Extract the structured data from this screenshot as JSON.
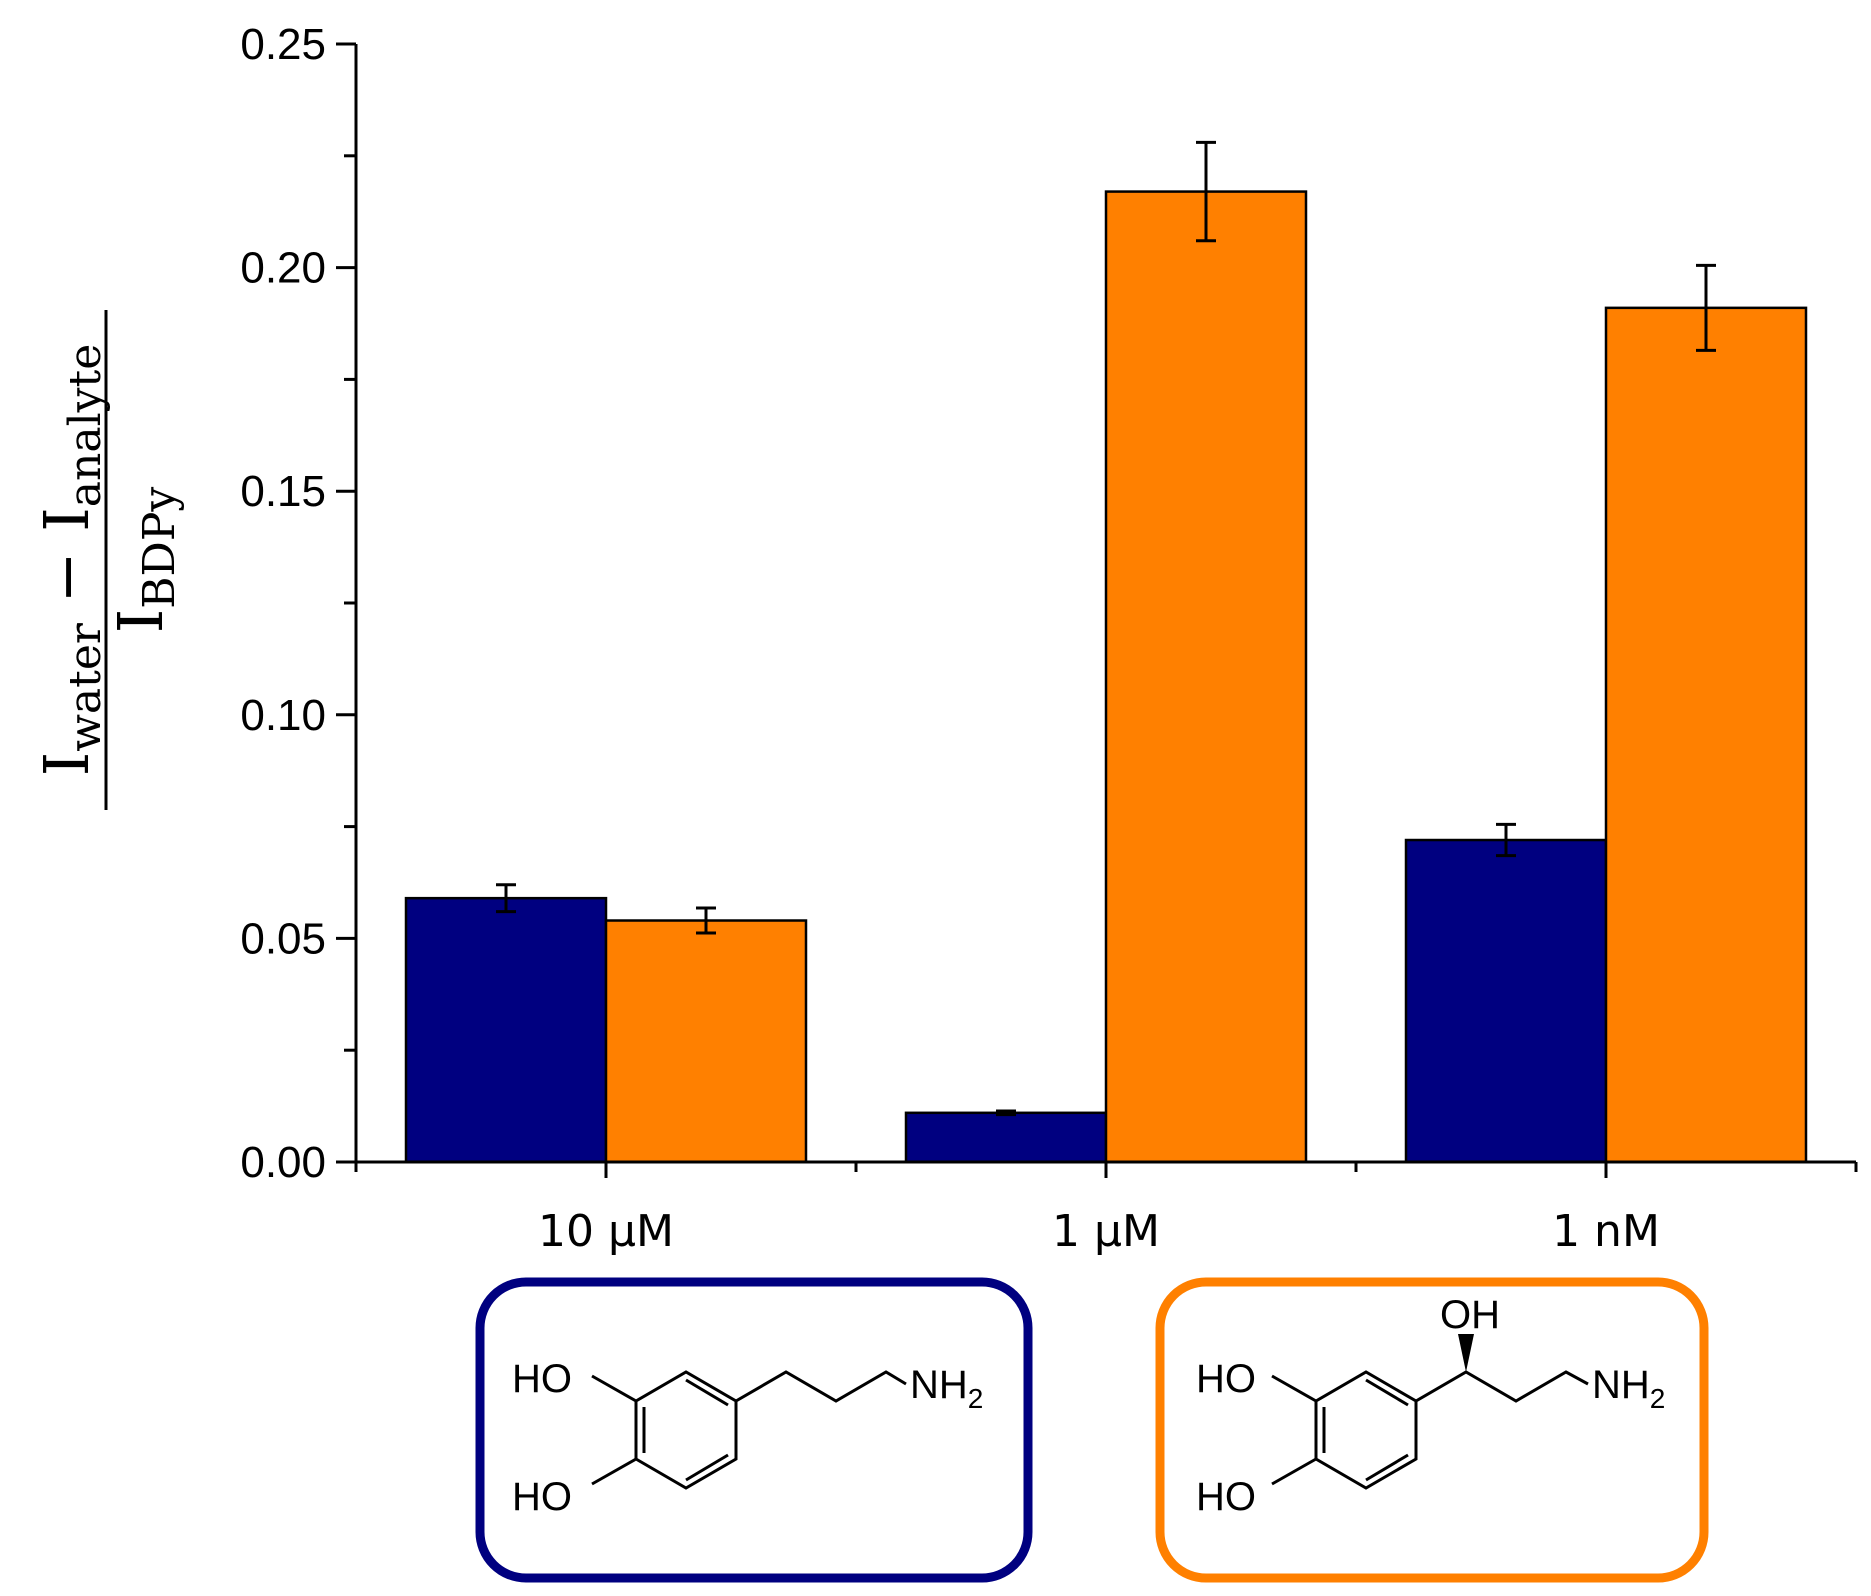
{
  "chart_data": {
    "type": "bar",
    "categories": [
      "10 μM",
      "1 μM",
      "1 nM"
    ],
    "series": [
      {
        "color": "#000080",
        "values": [
          0.059,
          0.011,
          0.072
        ],
        "errors": [
          0.003,
          0.0004,
          0.0035
        ]
      },
      {
        "color": "#FF8000",
        "values": [
          0.054,
          0.217,
          0.191
        ],
        "errors": [
          0.0028,
          0.011,
          0.0095
        ]
      }
    ],
    "ylim": [
      0,
      0.25
    ],
    "yticks": [
      "0.00",
      "0.05",
      "0.10",
      "0.15",
      "0.20",
      "0.25"
    ],
    "ylabel": {
      "numerator": "I",
      "numerator_sub1": "water",
      "minus": " − I",
      "numerator_sub2": "analyte",
      "denominator": "I",
      "denominator_sub": "BDPy"
    },
    "grid": false
  },
  "structures": [
    {
      "border_color": "#000080",
      "labels": {
        "ho_top": "HO",
        "ho_bottom": "HO",
        "nh2": "NH",
        "nh2_sub": "2"
      }
    },
    {
      "border_color": "#FF8000",
      "labels": {
        "ho_top": "HO",
        "ho_bottom": "HO",
        "oh": "OH",
        "nh2": "NH",
        "nh2_sub": "2"
      }
    }
  ]
}
